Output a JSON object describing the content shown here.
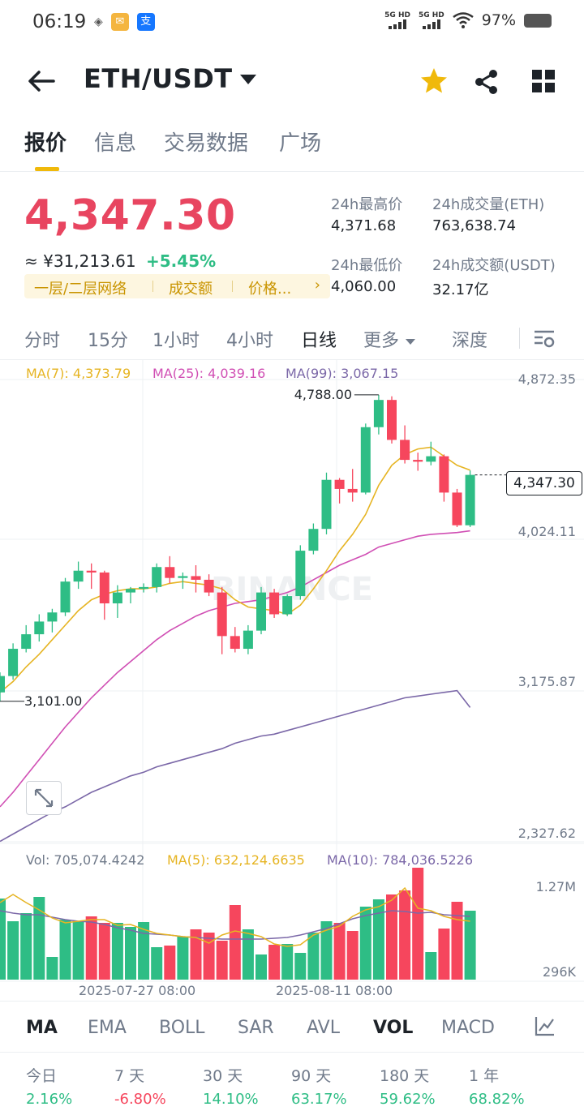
{
  "status": {
    "time": "06:19",
    "signal1": "5G HD",
    "signal2": "5G HD",
    "battery": "97%"
  },
  "nav": {
    "pair": "ETH/USDT"
  },
  "tabs": [
    "报价",
    "信息",
    "交易数据",
    "广场"
  ],
  "price": {
    "last": "4,347.30",
    "cny": "≈ ¥31,213.61",
    "change": "+5.45%"
  },
  "tags": [
    "一层/二层网络",
    "成交额",
    "价格..."
  ],
  "stats": {
    "high_label": "24h最高价",
    "high_value": "4,371.68",
    "vol_eth_label": "24h成交量(ETH)",
    "vol_eth_value": "763,638.74",
    "low_label": "24h最低价",
    "low_value": "4,060.00",
    "vol_usdt_label": "24h成交额(USDT)",
    "vol_usdt_value": "32.17亿"
  },
  "intervals": [
    "分时",
    "15分",
    "1小时",
    "4小时",
    "日线",
    "更多",
    "深度"
  ],
  "ma_legend": {
    "ma7": "MA(7): 4,373.79",
    "ma25": "MA(25): 4,039.16",
    "ma99": "MA(99): 3,067.15"
  },
  "axis": {
    "p1": "4,872.35",
    "p2": "4,024.11",
    "p3": "3,175.87",
    "p4": "2,327.62",
    "v1": "1.27M",
    "v2": "296K",
    "d1": "2025-07-27 08:00",
    "d2": "2025-08-11 08:00"
  },
  "annotations": {
    "high": "4,788.00",
    "low": "3,101.00",
    "current": "4,347.30"
  },
  "watermark": "BINANCE",
  "vol_legend": {
    "vol": "Vol: 705,074.4242",
    "ma5": "MA(5): 632,124.6635",
    "ma10": "MA(10): 784,036.5226"
  },
  "indicators": [
    "MA",
    "EMA",
    "BOLL",
    "SAR",
    "AVL",
    "VOL",
    "MACD"
  ],
  "performance": [
    {
      "label": "今日",
      "value": "2.16%"
    },
    {
      "label": "7 天",
      "value": "-6.80%"
    },
    {
      "label": "30 天",
      "value": "14.10%"
    },
    {
      "label": "90 天",
      "value": "63.17%"
    },
    {
      "label": "180 天",
      "value": "59.62%"
    },
    {
      "label": "1 年",
      "value": "68.82%"
    }
  ],
  "colors": {
    "up": "#2ebd85",
    "down": "#f6465d",
    "accent": "#f0b90b",
    "ma7": "#e6b422",
    "ma25": "#d04fb4",
    "ma99": "#7b68a8"
  },
  "chart_data": {
    "type": "candlestick",
    "price_axis": [
      2327.62,
      3175.87,
      4024.11,
      4872.35
    ],
    "candles": [
      {
        "o": 3150,
        "h": 3260,
        "l": 3101,
        "c": 3240
      },
      {
        "o": 3240,
        "h": 3420,
        "l": 3220,
        "c": 3390
      },
      {
        "o": 3390,
        "h": 3520,
        "l": 3370,
        "c": 3470
      },
      {
        "o": 3470,
        "h": 3580,
        "l": 3430,
        "c": 3540
      },
      {
        "o": 3540,
        "h": 3610,
        "l": 3480,
        "c": 3590
      },
      {
        "o": 3590,
        "h": 3780,
        "l": 3570,
        "c": 3760
      },
      {
        "o": 3760,
        "h": 3870,
        "l": 3720,
        "c": 3820
      },
      {
        "o": 3820,
        "h": 3860,
        "l": 3720,
        "c": 3810
      },
      {
        "o": 3810,
        "h": 3820,
        "l": 3550,
        "c": 3640
      },
      {
        "o": 3640,
        "h": 3740,
        "l": 3560,
        "c": 3700
      },
      {
        "o": 3700,
        "h": 3730,
        "l": 3640,
        "c": 3720
      },
      {
        "o": 3720,
        "h": 3750,
        "l": 3700,
        "c": 3730
      },
      {
        "o": 3730,
        "h": 3860,
        "l": 3700,
        "c": 3840
      },
      {
        "o": 3840,
        "h": 3900,
        "l": 3750,
        "c": 3780
      },
      {
        "o": 3780,
        "h": 3810,
        "l": 3720,
        "c": 3790
      },
      {
        "o": 3790,
        "h": 3850,
        "l": 3700,
        "c": 3770
      },
      {
        "o": 3770,
        "h": 3800,
        "l": 3680,
        "c": 3700
      },
      {
        "o": 3700,
        "h": 3730,
        "l": 3360,
        "c": 3460
      },
      {
        "o": 3460,
        "h": 3510,
        "l": 3370,
        "c": 3390
      },
      {
        "o": 3390,
        "h": 3520,
        "l": 3360,
        "c": 3490
      },
      {
        "o": 3490,
        "h": 3730,
        "l": 3470,
        "c": 3700
      },
      {
        "o": 3700,
        "h": 3720,
        "l": 3560,
        "c": 3580
      },
      {
        "o": 3580,
        "h": 3690,
        "l": 3570,
        "c": 3680
      },
      {
        "o": 3680,
        "h": 3960,
        "l": 3660,
        "c": 3930
      },
      {
        "o": 3930,
        "h": 4080,
        "l": 3910,
        "c": 4050
      },
      {
        "o": 4050,
        "h": 4360,
        "l": 4020,
        "c": 4320
      },
      {
        "o": 4320,
        "h": 4330,
        "l": 4190,
        "c": 4270
      },
      {
        "o": 4270,
        "h": 4380,
        "l": 4200,
        "c": 4250
      },
      {
        "o": 4250,
        "h": 4630,
        "l": 4240,
        "c": 4610
      },
      {
        "o": 4610,
        "h": 4788,
        "l": 4570,
        "c": 4760
      },
      {
        "o": 4760,
        "h": 4780,
        "l": 4520,
        "c": 4540
      },
      {
        "o": 4540,
        "h": 4620,
        "l": 4410,
        "c": 4430
      },
      {
        "o": 4430,
        "h": 4470,
        "l": 4370,
        "c": 4420
      },
      {
        "o": 4420,
        "h": 4530,
        "l": 4400,
        "c": 4450
      },
      {
        "o": 4450,
        "h": 4460,
        "l": 4200,
        "c": 4250
      },
      {
        "o": 4250,
        "h": 4270,
        "l": 4060,
        "c": 4070
      },
      {
        "o": 4070,
        "h": 4371.68,
        "l": 4060,
        "c": 4347.3
      }
    ],
    "ma7": [
      3150,
      3210,
      3290,
      3360,
      3440,
      3520,
      3600,
      3660,
      3690,
      3710,
      3720,
      3720,
      3730,
      3750,
      3760,
      3750,
      3740,
      3720,
      3660,
      3620,
      3610,
      3600,
      3580,
      3630,
      3720,
      3820,
      3930,
      4020,
      4130,
      4290,
      4400,
      4460,
      4490,
      4500,
      4450,
      4400,
      4373.79
    ],
    "ma25": [
      2520,
      2600,
      2690,
      2780,
      2870,
      2960,
      3040,
      3120,
      3190,
      3260,
      3320,
      3380,
      3440,
      3490,
      3530,
      3570,
      3600,
      3620,
      3640,
      3650,
      3660,
      3680,
      3700,
      3730,
      3770,
      3810,
      3850,
      3880,
      3910,
      3950,
      3970,
      3990,
      4010,
      4020,
      4025,
      4030,
      4039.16
    ],
    "ma99": [
      2330,
      2370,
      2410,
      2450,
      2490,
      2520,
      2560,
      2600,
      2630,
      2660,
      2690,
      2710,
      2740,
      2760,
      2780,
      2800,
      2820,
      2840,
      2870,
      2890,
      2910,
      2920,
      2940,
      2960,
      2980,
      3000,
      3020,
      3040,
      3060,
      3080,
      3100,
      3120,
      3130,
      3140,
      3150,
      3160,
      3067.15
    ],
    "volume": [
      1.0,
      0.72,
      0.82,
      1.02,
      0.28,
      0.74,
      0.72,
      0.78,
      0.7,
      0.7,
      0.65,
      0.71,
      0.4,
      0.42,
      0.53,
      0.62,
      0.58,
      0.48,
      0.92,
      0.62,
      0.31,
      0.43,
      0.44,
      0.33,
      0.58,
      0.72,
      0.7,
      0.6,
      0.9,
      0.99,
      1.05,
      1.1,
      1.38,
      0.34,
      0.63,
      0.96,
      0.85
    ],
    "vol_ma5": [
      0.95,
      1.05,
      0.95,
      0.86,
      0.76,
      0.7,
      0.72,
      0.74,
      0.74,
      0.67,
      0.68,
      0.62,
      0.57,
      0.55,
      0.53,
      0.52,
      0.45,
      0.55,
      0.6,
      0.57,
      0.53,
      0.44,
      0.41,
      0.43,
      0.55,
      0.61,
      0.66,
      0.78,
      0.86,
      0.9,
      0.98,
      1.13,
      0.88,
      0.85,
      0.78,
      0.74,
      0.72
    ],
    "vol_ma10": [
      0.85,
      0.82,
      0.8,
      0.8,
      0.77,
      0.74,
      0.72,
      0.71,
      0.68,
      0.64,
      0.61,
      0.57,
      0.56,
      0.55,
      0.53,
      0.52,
      0.51,
      0.5,
      0.5,
      0.5,
      0.5,
      0.51,
      0.52,
      0.55,
      0.59,
      0.63,
      0.69,
      0.75,
      0.79,
      0.82,
      0.85,
      0.84,
      0.82,
      0.83,
      0.8,
      0.79,
      0.78
    ]
  }
}
